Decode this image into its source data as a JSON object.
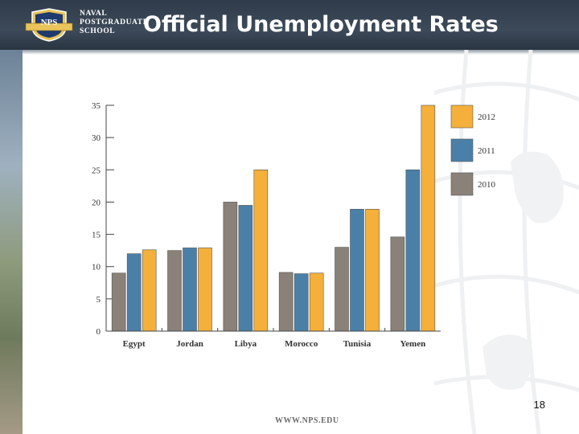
{
  "header": {
    "logo_lines": [
      "NAVAL",
      "POSTGRADUATE",
      "SCHOOL"
    ],
    "logo_mark": "NPS",
    "title": "Official Unemployment Rates"
  },
  "footer": {
    "page_number": "18",
    "url": "WWW.NPS.EDU"
  },
  "colors": {
    "header_bg": "#333f4d",
    "series_2010": "#8a8178",
    "series_2011": "#4a80a8",
    "series_2012": "#f4b03b"
  },
  "chart_data": {
    "type": "bar",
    "title": "",
    "xlabel": "",
    "ylabel": "",
    "categories": [
      "Egypt",
      "Jordan",
      "Libya",
      "Morocco",
      "Tunisia",
      "Yemen"
    ],
    "series": [
      {
        "name": "2010",
        "color": "#8a8178",
        "values": [
          9,
          12.5,
          20,
          9.1,
          13,
          14.6
        ]
      },
      {
        "name": "2011",
        "color": "#4a80a8",
        "values": [
          12,
          12.9,
          19.5,
          8.9,
          18.9,
          25
        ]
      },
      {
        "name": "2012",
        "color": "#f4b03b",
        "values": [
          12.6,
          12.9,
          25,
          9,
          18.9,
          35
        ]
      }
    ],
    "ylim": [
      0,
      35
    ],
    "yticks": [
      "0",
      "5",
      "10",
      "15",
      "20",
      "25",
      "30",
      "35"
    ],
    "grid": false,
    "legend_position": "right",
    "legend_order": [
      "2012",
      "2011",
      "2010"
    ]
  }
}
